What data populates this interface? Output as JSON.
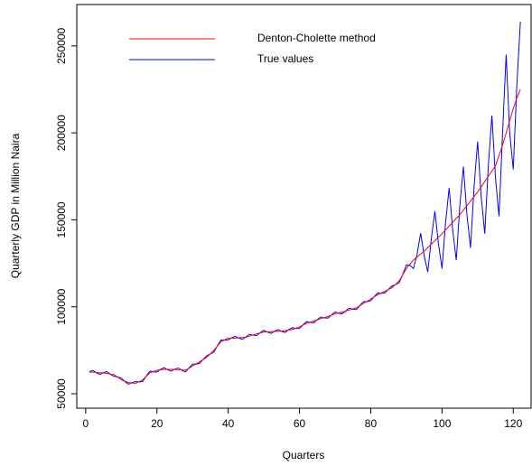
{
  "chart_data": {
    "type": "line",
    "xlabel": "Quarters",
    "ylabel": "Quarterly GDP in Million Naira",
    "x": [
      1,
      2,
      3,
      4,
      5,
      6,
      7,
      8,
      9,
      10,
      11,
      12,
      13,
      14,
      15,
      16,
      17,
      18,
      19,
      20,
      21,
      22,
      23,
      24,
      25,
      26,
      27,
      28,
      29,
      30,
      31,
      32,
      33,
      34,
      35,
      36,
      37,
      38,
      39,
      40,
      41,
      42,
      43,
      44,
      45,
      46,
      47,
      48,
      49,
      50,
      51,
      52,
      53,
      54,
      55,
      56,
      57,
      58,
      59,
      60,
      61,
      62,
      63,
      64,
      65,
      66,
      67,
      68,
      69,
      70,
      71,
      72,
      73,
      74,
      75,
      76,
      77,
      78,
      79,
      80,
      81,
      82,
      83,
      84,
      85,
      86,
      87,
      88,
      89,
      90,
      91,
      92,
      93,
      94,
      95,
      96,
      97,
      98,
      99,
      100,
      101,
      102,
      103,
      104,
      105,
      106,
      107,
      108,
      109,
      110,
      111,
      112,
      113,
      114,
      115,
      116,
      117,
      118,
      119,
      120,
      121,
      122
    ],
    "series": [
      {
        "name": "Denton-Cholette method",
        "color": "#ff0000",
        "values": [
          62500,
          62400,
          62300,
          62100,
          62000,
          61700,
          61300,
          61000,
          59500,
          58000,
          57200,
          56500,
          56200,
          56000,
          57000,
          58000,
          60000,
          62000,
          62800,
          63500,
          63800,
          64000,
          64000,
          64000,
          64000,
          63800,
          63700,
          63500,
          64700,
          66000,
          67200,
          68500,
          69700,
          71000,
          73000,
          75000,
          77500,
          80000,
          81000,
          82000,
          82000,
          82000,
          82200,
          82300,
          82500,
          83200,
          83800,
          84500,
          85000,
          85500,
          85600,
          85700,
          85800,
          85900,
          86000,
          86300,
          86700,
          87000,
          87700,
          88500,
          89500,
          90500,
          91200,
          91800,
          92500,
          93200,
          93800,
          94500,
          95200,
          96000,
          96500,
          97000,
          97500,
          98200,
          98800,
          99500,
          100700,
          102000,
          103200,
          104500,
          105700,
          107000,
          108000,
          109000,
          110000,
          111000,
          113000,
          115000,
          118500,
          122000,
          124500,
          127000,
          128700,
          130300,
          132000,
          134000,
          136000,
          138000,
          140000,
          142000,
          144200,
          146400,
          148600,
          150800,
          153000,
          155600,
          158200,
          160800,
          163400,
          166000,
          169000,
          172000,
          175000,
          178000,
          181000,
          187000,
          193000,
          200000,
          207000,
          214000,
          220000,
          225000
        ]
      },
      {
        "name": "True values",
        "color": "#0000ff",
        "values": [
          62700,
          63400,
          62100,
          61100,
          62200,
          62700,
          61100,
          60000,
          59700,
          59000,
          57000,
          55500,
          56400,
          57000,
          56800,
          57000,
          60200,
          63000,
          62600,
          62500,
          64000,
          65000,
          63800,
          63000,
          64200,
          64800,
          63500,
          62500,
          64900,
          67000,
          67000,
          67500,
          69900,
          72000,
          72800,
          74000,
          77700,
          81000,
          80800,
          81000,
          82200,
          83000,
          82000,
          81300,
          82700,
          84200,
          83600,
          83500,
          85200,
          86500,
          85400,
          84700,
          86000,
          86900,
          85800,
          85300,
          86900,
          88000,
          87500,
          87500,
          89700,
          91500,
          91000,
          90800,
          92700,
          94200,
          93600,
          93500,
          95400,
          97000,
          96300,
          96000,
          97700,
          99200,
          98600,
          98500,
          100900,
          103000,
          103000,
          103500,
          105900,
          108000,
          107800,
          108000,
          110200,
          112000,
          112800,
          114000,
          118700,
          124000,
          123800,
          122000,
          130300,
          142300,
          129400,
          120000,
          139100,
          155000,
          136300,
          122000,
          148400,
          168400,
          144000,
          126800,
          157900,
          180600,
          153000,
          133800,
          169000,
          195000,
          163100,
          142000,
          181200,
          210000,
          174300,
          152000,
          200200,
          245000,
          199800,
          179000,
          227400,
          264000
        ]
      }
    ],
    "xlim": [
      -2.5,
      125
    ],
    "xticks": [
      0,
      20,
      40,
      60,
      80,
      100,
      120
    ],
    "ylim": [
      41700,
      273800
    ],
    "yticks": [
      50000,
      100000,
      150000,
      200000,
      250000
    ],
    "legend": "top"
  }
}
